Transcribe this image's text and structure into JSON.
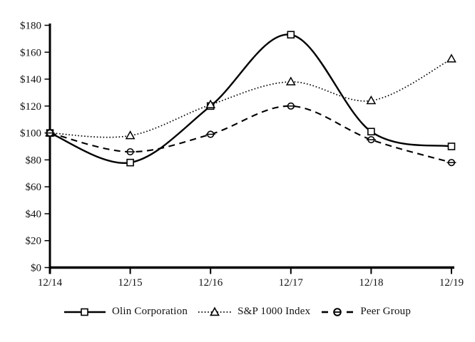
{
  "chart_data": {
    "type": "line",
    "title": "",
    "xlabel": "",
    "ylabel": "",
    "categories": [
      "12/14",
      "12/15",
      "12/16",
      "12/17",
      "12/18",
      "12/19"
    ],
    "series": [
      {
        "name": "Olin Corporation",
        "line_style": "solid",
        "marker": "square",
        "values": [
          100,
          78,
          120,
          173,
          101,
          90
        ]
      },
      {
        "name": "S&P 1000 Index",
        "line_style": "dotted",
        "marker": "triangle",
        "values": [
          100,
          98,
          121,
          138,
          124,
          155
        ]
      },
      {
        "name": "Peer Group",
        "line_style": "dashed",
        "marker": "circle",
        "values": [
          100,
          86,
          99,
          120,
          95,
          78
        ]
      }
    ],
    "ylim": [
      0,
      180
    ],
    "ytick_step": 20,
    "ytick_prefix": "$",
    "ytick_labels": [
      "$0",
      "$20",
      "$40",
      "$60",
      "$80",
      "$100",
      "$120",
      "$140",
      "$160",
      "$180"
    ],
    "grid": false,
    "legend_position": "bottom",
    "colors": {
      "line": "#000000",
      "background": "#ffffff",
      "text": "#111111"
    }
  }
}
